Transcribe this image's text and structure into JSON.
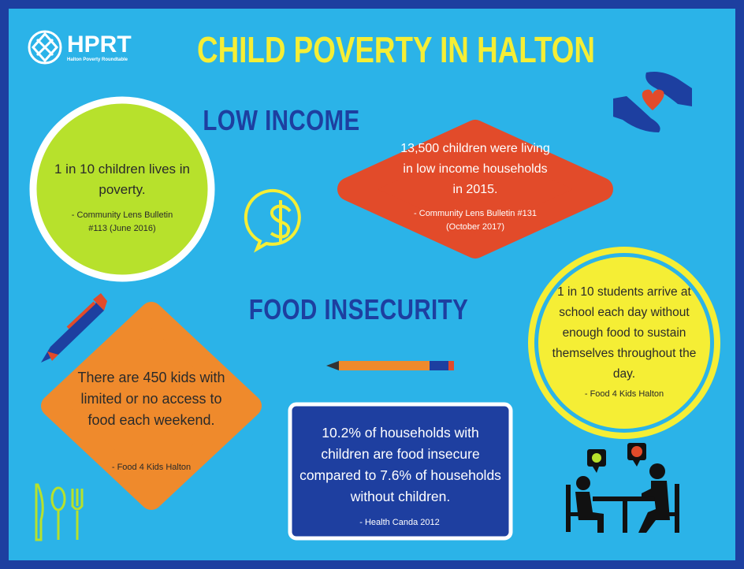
{
  "logo": {
    "name": "HPRT",
    "subtitle": "Halton Poverty Roundtable"
  },
  "title": "CHILD POVERTY IN HALTON",
  "sections": [
    {
      "heading": "LOW INCOME"
    },
    {
      "heading": "FOOD INSECURITY"
    }
  ],
  "cards": [
    {
      "text": "1 in 10 children lives in poverty.",
      "source": "- Community Lens Bulletin #113 (June 2016)"
    },
    {
      "text": "13,500 children were living in low income households in 2015.",
      "source": "- Community Lens Bulletin #131 (October 2017)"
    },
    {
      "text": "1 in 10 students arrive at school each day without enough food to sustain themselves throughout the day.",
      "source": "- Food 4 Kids Halton"
    },
    {
      "text": "There are 450 kids with limited or no access to food each weekend.",
      "source": "- Food 4 Kids Halton"
    },
    {
      "text": "10.2% of households with children are food insecure compared to 7.6% of households without children.",
      "source": "- Health Canda 2012"
    }
  ]
}
